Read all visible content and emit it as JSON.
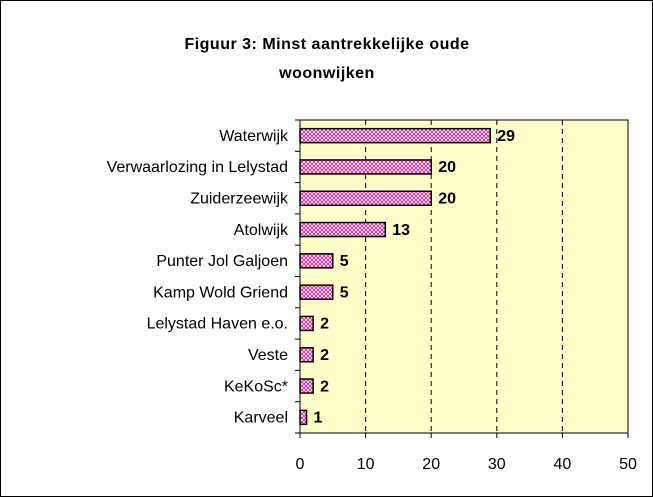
{
  "chart_data": {
    "type": "bar",
    "orientation": "horizontal",
    "title": "Figuur 3: Minst aantrekkelijke oude woonwijken",
    "categories": [
      "Waterwijk",
      "Verwaarlozing in Lelystad",
      "Zuiderzeewijk",
      "Atolwijk",
      "Punter Jol Galjoen",
      "Kamp Wold Griend",
      "Lelystad Haven e.o.",
      "Veste",
      "KeKoSc*",
      "Karveel"
    ],
    "values": [
      29,
      20,
      20,
      13,
      5,
      5,
      2,
      2,
      2,
      1
    ],
    "color": "#ff99cc",
    "xlim": [
      0,
      50
    ],
    "xticks": [
      0,
      10,
      20,
      30,
      40,
      50
    ],
    "grid": true
  }
}
